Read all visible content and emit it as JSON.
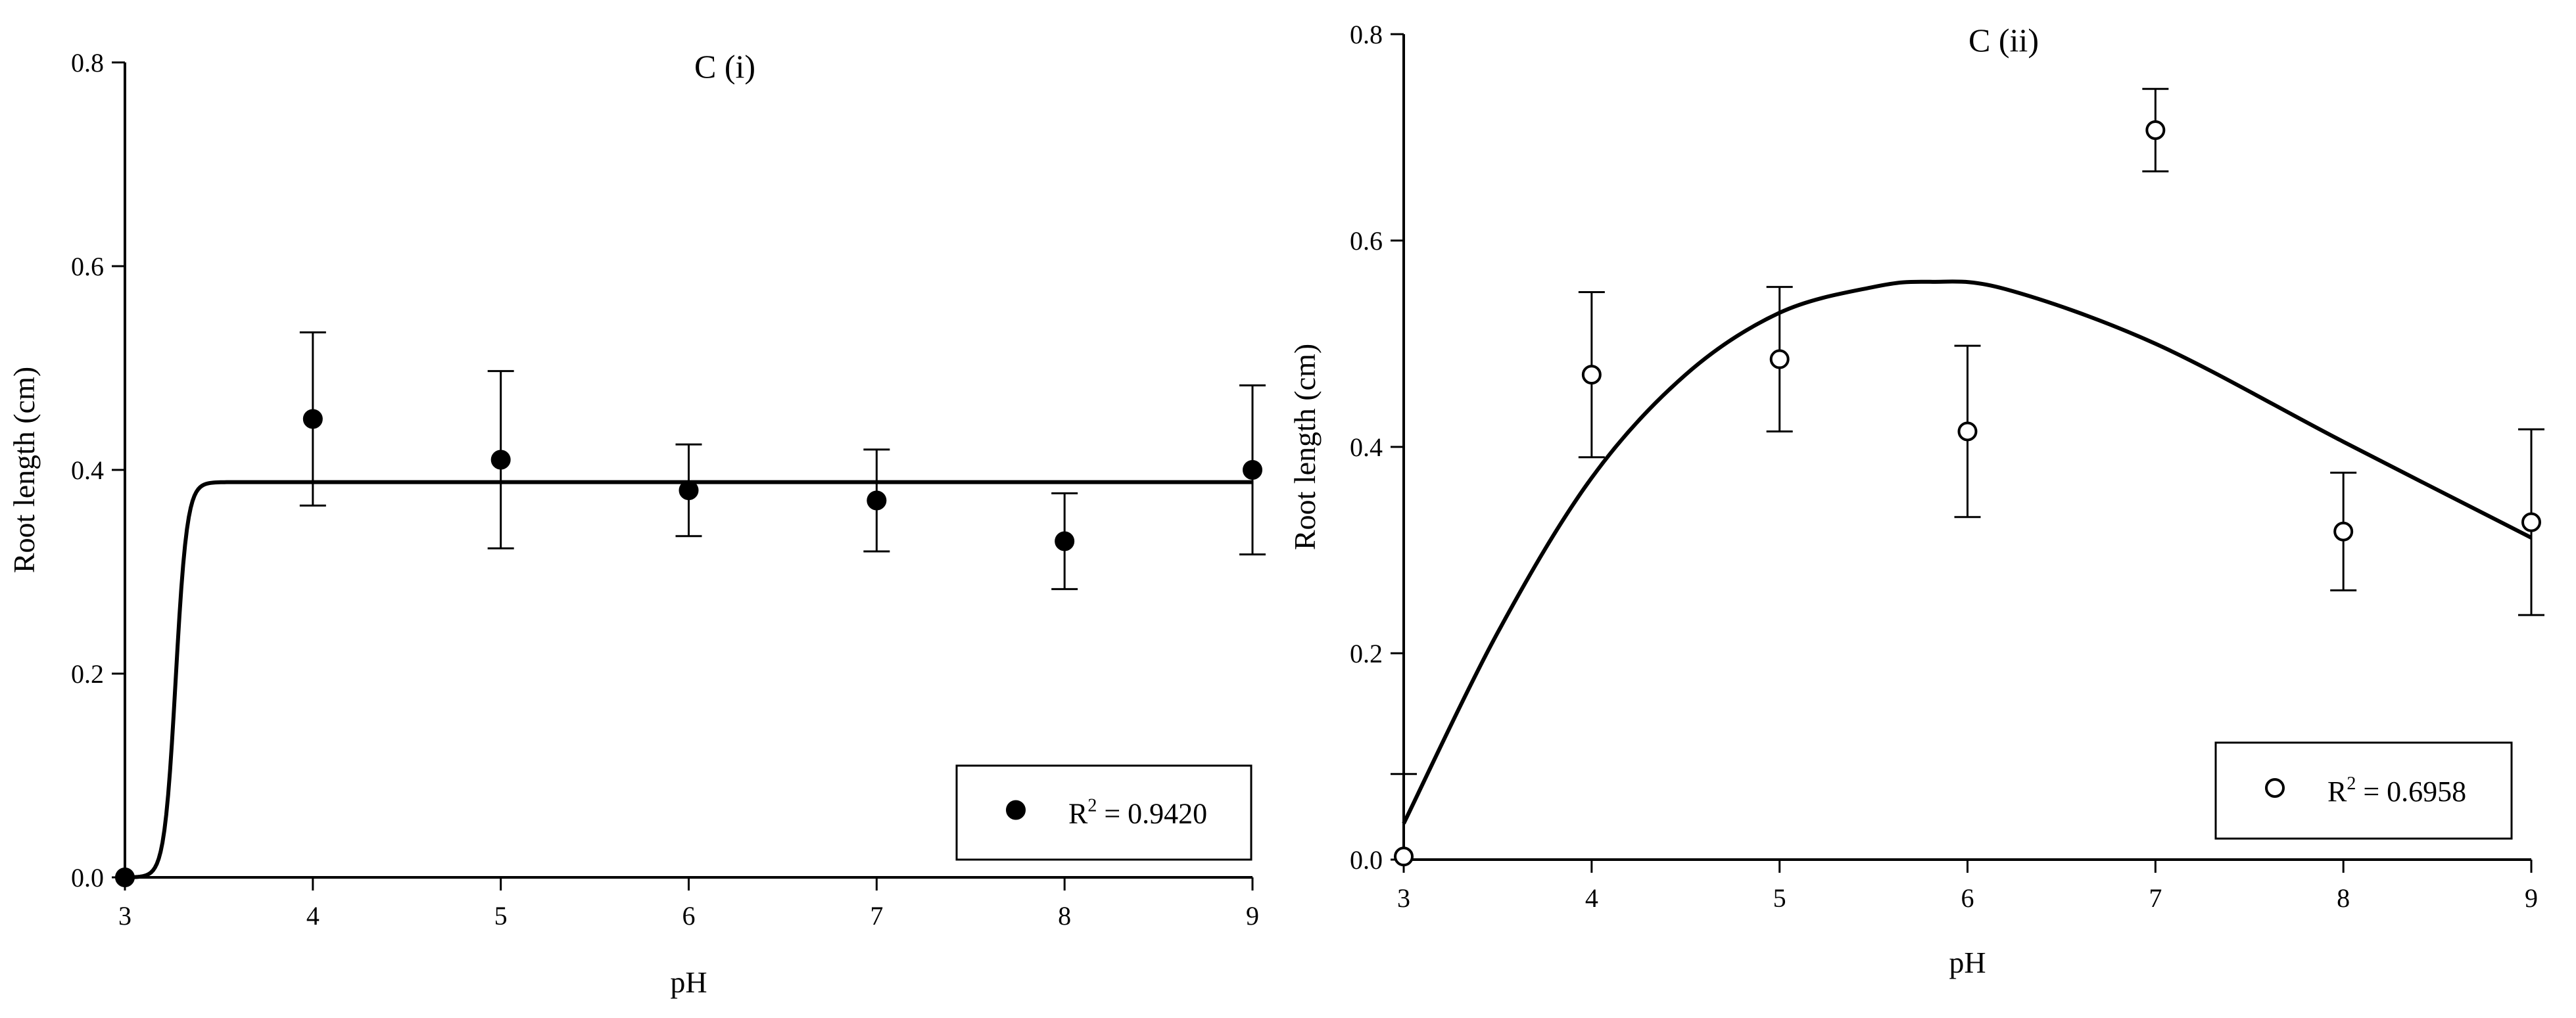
{
  "chart_data": [
    {
      "type": "scatter",
      "title": "C (i)",
      "xlabel": "pH",
      "ylabel": "Root length (cm)",
      "xlim": [
        3,
        9
      ],
      "ylim": [
        0,
        0.8
      ],
      "xticks": [
        "3",
        "4",
        "5",
        "6",
        "7",
        "8",
        "9"
      ],
      "yticks": [
        "0.0",
        "0.2",
        "0.4",
        "0.6",
        "0.8"
      ],
      "marker": "filled-circle",
      "legend": {
        "position": "bottom-right",
        "r2_prefix": "R",
        "r2_sup": "2",
        "r2_value": " = 0.9420"
      },
      "series": [
        {
          "x": [
            3,
            4,
            5,
            6,
            7,
            8,
            9
          ],
          "y": [
            0.0,
            0.45,
            0.41,
            0.38,
            0.37,
            0.33,
            0.4
          ],
          "error": [
            0,
            0.085,
            0.087,
            0.045,
            0.05,
            0.047,
            0.083
          ]
        }
      ],
      "fit": {
        "kind": "sigmoid",
        "plateau": 0.388,
        "midpoint": 3.27,
        "slope": 0.03
      }
    },
    {
      "type": "scatter",
      "title": "C (ii)",
      "xlabel": "pH",
      "ylabel": "Root length (cm)",
      "xlim": [
        3,
        9
      ],
      "ylim": [
        0,
        0.8
      ],
      "xticks": [
        "3",
        "4",
        "5",
        "6",
        "7",
        "8",
        "9"
      ],
      "yticks": [
        "0.0",
        "0.2",
        "0.4",
        "0.6",
        "0.8"
      ],
      "marker": "open-circle",
      "legend": {
        "position": "bottom-right",
        "r2_prefix": "R",
        "r2_sup": "2",
        "r2_value": " = 0.6958"
      },
      "series": [
        {
          "x": [
            3,
            4,
            5,
            6,
            7,
            8,
            9
          ],
          "y": [
            0.003,
            0.47,
            0.485,
            0.415,
            0.707,
            0.318,
            0.327
          ],
          "error": [
            0.08,
            0.08,
            0.07,
            0.083,
            0.04,
            0.057,
            0.09
          ]
        }
      ],
      "fit": {
        "kind": "smooth",
        "x": [
          3,
          3.5,
          4,
          4.5,
          5,
          5.5,
          5.8,
          6.2,
          7,
          8,
          9
        ],
        "y": [
          0.035,
          0.22,
          0.37,
          0.47,
          0.53,
          0.555,
          0.56,
          0.553,
          0.5,
          0.405,
          0.312
        ]
      }
    }
  ]
}
